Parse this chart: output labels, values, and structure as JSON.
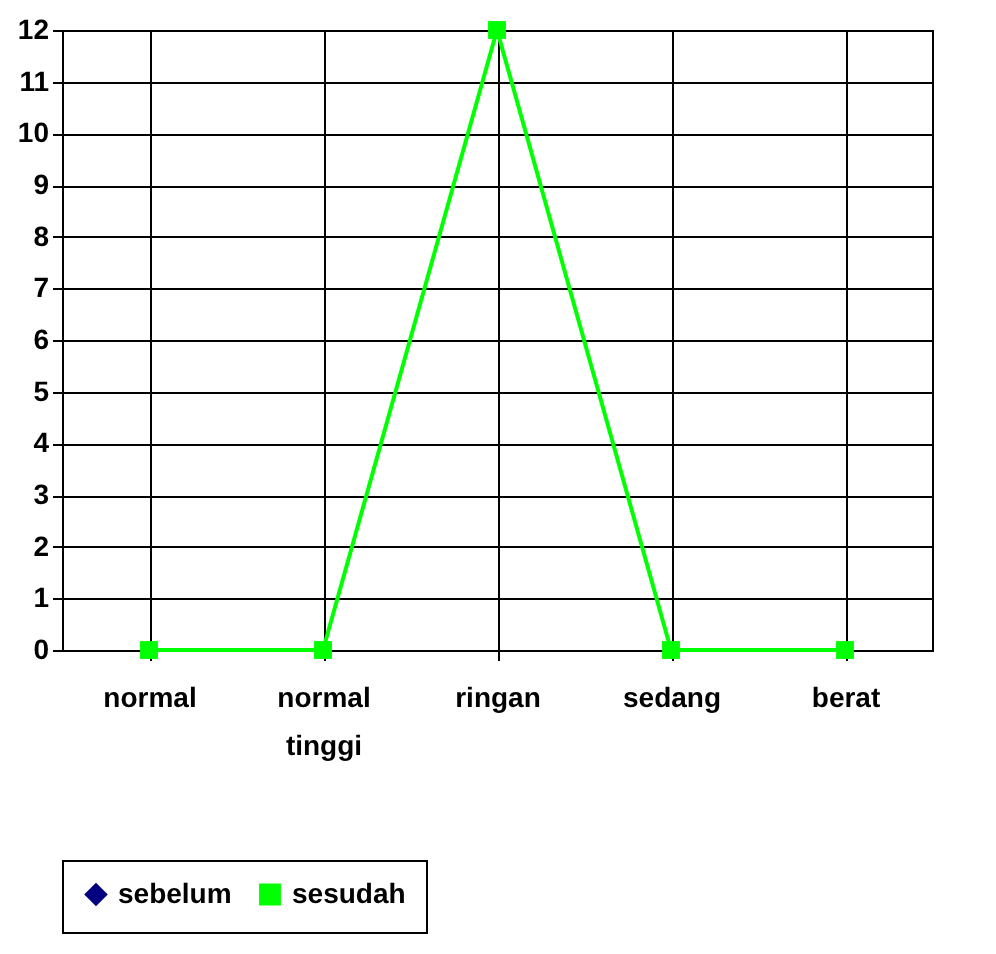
{
  "chart_data": {
    "type": "line",
    "categories": [
      "normal",
      "normal tinggi",
      "ringan",
      "sedang",
      "berat"
    ],
    "series": [
      {
        "name": "sebelum",
        "color": "#000080",
        "marker": "diamond",
        "values": [
          null,
          null,
          null,
          null,
          null
        ]
      },
      {
        "name": "sesudah",
        "color": "#00ff00",
        "marker": "square",
        "values": [
          0,
          0,
          12,
          0,
          0
        ]
      }
    ],
    "ylim": [
      0,
      12
    ],
    "yticks": [
      0,
      1,
      2,
      3,
      4,
      5,
      6,
      7,
      8,
      9,
      10,
      11,
      12
    ],
    "grid": true,
    "legend": "bottom",
    "line_style": "solid"
  }
}
